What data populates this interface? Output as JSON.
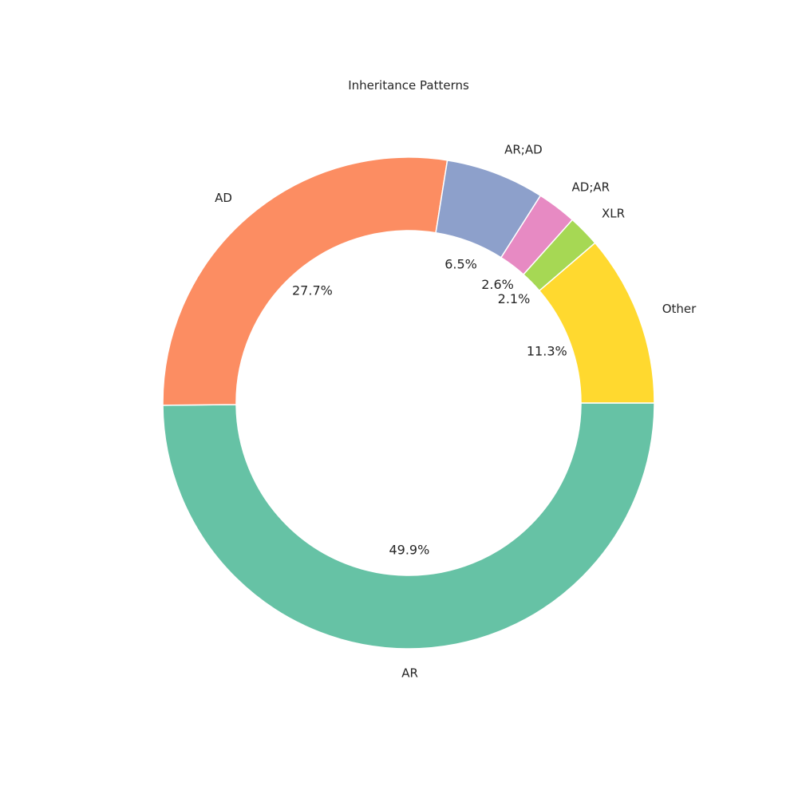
{
  "chart_data": {
    "type": "pie",
    "style": "donut",
    "title": "Inheritance Patterns",
    "start_angle_deg": 0,
    "direction": "clockwise",
    "slices": [
      {
        "label": "AR",
        "value": 49.9,
        "pct_label": "49.9%",
        "color": "#66c2a5"
      },
      {
        "label": "AD",
        "value": 27.7,
        "pct_label": "27.7%",
        "color": "#fc8d62"
      },
      {
        "label": "AR;AD",
        "value": 6.5,
        "pct_label": "6.5%",
        "color": "#8da0cb"
      },
      {
        "label": "AD;AR",
        "value": 2.6,
        "pct_label": "2.6%",
        "color": "#e78ac3"
      },
      {
        "label": "XLR",
        "value": 2.1,
        "pct_label": "2.1%",
        "color": "#a6d854"
      },
      {
        "label": "Other",
        "value": 11.3,
        "pct_label": "11.3%",
        "color": "#ffd92f"
      }
    ],
    "legend": "none"
  }
}
